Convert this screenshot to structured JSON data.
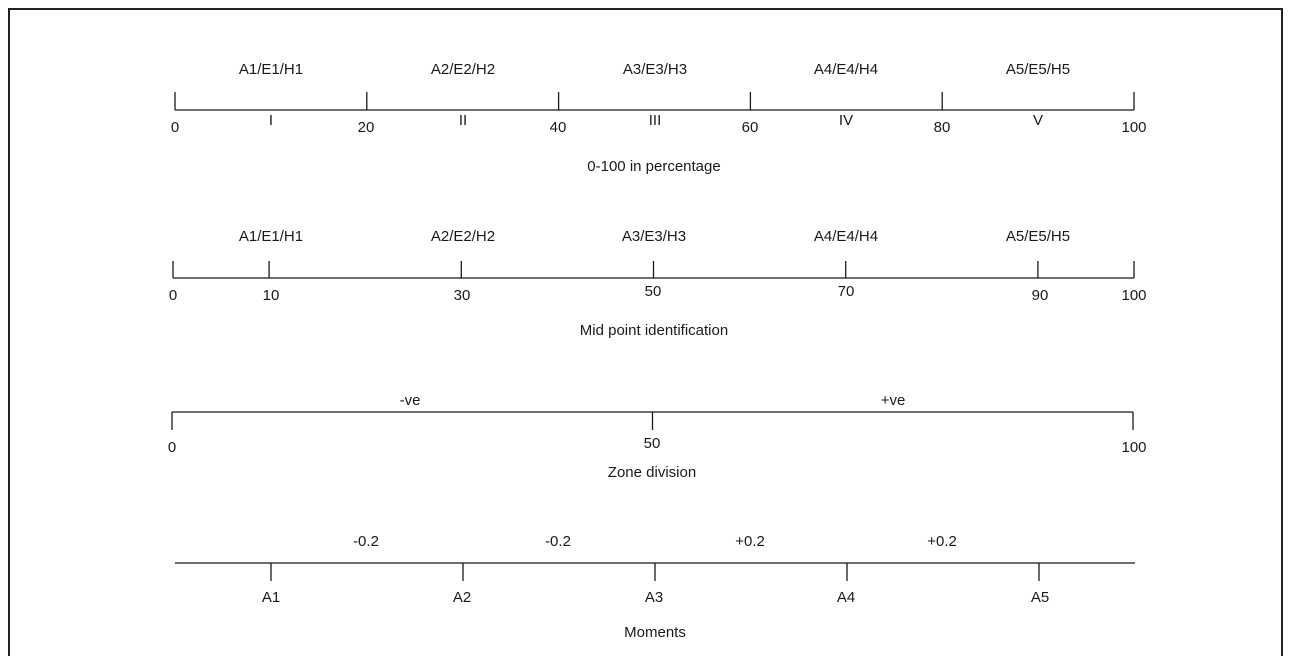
{
  "scales": [
    {
      "id": "percentage",
      "caption": "0-100 in percentage",
      "bracket_labels": [
        "A1/E1/H1",
        "A2/E2/H2",
        "A3/E3/H3",
        "A4/E4/H4",
        "A5/E5/H5"
      ],
      "tick_values": [
        0,
        20,
        40,
        60,
        80,
        100
      ],
      "tick_labels": [
        "0",
        "20",
        "40",
        "60",
        "80",
        "100"
      ],
      "segment_labels": [
        "I",
        "II",
        "III",
        "IV",
        "V"
      ]
    },
    {
      "id": "midpoint",
      "caption": "Mid point identification",
      "bracket_labels": [
        "A1/E1/H1",
        "A2/E2/H2",
        "A3/E3/H3",
        "A4/E4/H4",
        "A5/E5/H5"
      ],
      "tick_values": [
        0,
        10,
        30,
        50,
        70,
        90,
        100
      ],
      "tick_labels": [
        "0",
        "10",
        "30",
        "50",
        "70",
        "90",
        "100"
      ]
    },
    {
      "id": "zone",
      "caption": "Zone division",
      "zone_labels": [
        "-ve",
        "+ve"
      ],
      "tick_values": [
        0,
        50,
        100
      ],
      "tick_labels": [
        "0",
        "50",
        "100"
      ]
    },
    {
      "id": "moments",
      "caption": "Moments",
      "moment_labels": [
        "-0.2",
        "-0.2",
        "+0.2",
        "+0.2"
      ],
      "tick_values": [
        10,
        30,
        50,
        70,
        90
      ],
      "tick_labels": [
        "A1",
        "A2",
        "A3",
        "A4",
        "A5"
      ]
    }
  ],
  "colors": {
    "stroke": "#1a1a1a",
    "border": "#222222",
    "background": "#ffffff"
  }
}
